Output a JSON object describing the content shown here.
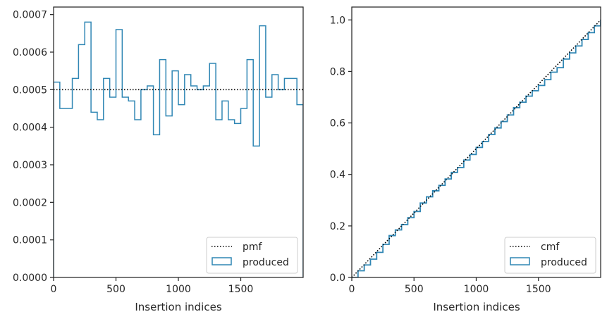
{
  "chart_data": [
    {
      "type": "histogram-step",
      "xlabel": "Insertion indices",
      "ylabel": "",
      "xlim": [
        0,
        2000
      ],
      "ylim": [
        0,
        0.00072
      ],
      "xticks": [
        0,
        500,
        1000,
        1500
      ],
      "xtick_labels": [
        "0",
        "500",
        "1000",
        "1500"
      ],
      "yticks": [
        0,
        0.0001,
        0.0002,
        0.0003,
        0.0004,
        0.0005,
        0.0006,
        0.0007
      ],
      "ytick_labels": [
        "0.0000",
        "0.0001",
        "0.0002",
        "0.0003",
        "0.0004",
        "0.0005",
        "0.0006",
        "0.0007"
      ],
      "legend_position": "lower-right",
      "bin_width": 50,
      "series": [
        {
          "name": "pmf",
          "style": "dotted",
          "color": "#000000",
          "x": [
            0,
            2000
          ],
          "y": [
            0.0005,
            0.0005
          ]
        },
        {
          "name": "produced",
          "style": "step",
          "color": "#2f86b4",
          "bin_edges": [
            0,
            50,
            100,
            150,
            200,
            250,
            300,
            350,
            400,
            450,
            500,
            550,
            600,
            650,
            700,
            750,
            800,
            850,
            900,
            950,
            1000,
            1050,
            1100,
            1150,
            1200,
            1250,
            1300,
            1350,
            1400,
            1450,
            1500,
            1550,
            1600,
            1650,
            1700,
            1750,
            1800,
            1850,
            1900,
            1950,
            2000
          ],
          "values": [
            0.00052,
            0.00045,
            0.00045,
            0.00053,
            0.00062,
            0.00068,
            0.00044,
            0.00042,
            0.00053,
            0.00048,
            0.00066,
            0.00048,
            0.00047,
            0.00042,
            0.0005,
            0.00051,
            0.00038,
            0.00058,
            0.00043,
            0.00055,
            0.00046,
            0.00054,
            0.00051,
            0.0005,
            0.00051,
            0.00057,
            0.00042,
            0.00047,
            0.00042,
            0.00041,
            0.00045,
            0.00058,
            0.00035,
            0.00067,
            0.00048,
            0.00054,
            0.0005,
            0.00053,
            0.00053,
            0.00046
          ]
        }
      ]
    },
    {
      "type": "line",
      "xlabel": "Insertion indices",
      "ylabel": "",
      "xlim": [
        0,
        2000
      ],
      "ylim": [
        0,
        1.05
      ],
      "xticks": [
        0,
        500,
        1000,
        1500
      ],
      "xtick_labels": [
        "0",
        "500",
        "1000",
        "1500"
      ],
      "yticks": [
        0,
        0.2,
        0.4,
        0.6,
        0.8,
        1.0
      ],
      "ytick_labels": [
        "0.0",
        "0.2",
        "0.4",
        "0.6",
        "0.8",
        "1.0"
      ],
      "legend_position": "lower-right",
      "series": [
        {
          "name": "cmf",
          "style": "dotted",
          "color": "#000000",
          "x": [
            0,
            2000
          ],
          "y": [
            0,
            1.0
          ]
        },
        {
          "name": "produced",
          "style": "step",
          "color": "#2f86b4",
          "x": [
            0,
            50,
            100,
            150,
            200,
            250,
            300,
            350,
            400,
            450,
            500,
            550,
            600,
            650,
            700,
            750,
            800,
            850,
            900,
            950,
            1000,
            1050,
            1100,
            1150,
            1200,
            1250,
            1300,
            1350,
            1400,
            1450,
            1500,
            1550,
            1600,
            1650,
            1700,
            1750,
            1800,
            1850,
            1900,
            1950,
            2000
          ],
          "y": [
            0,
            0.026,
            0.0485,
            0.071,
            0.0975,
            0.1285,
            0.1625,
            0.1845,
            0.2055,
            0.232,
            0.256,
            0.289,
            0.313,
            0.3365,
            0.3575,
            0.3825,
            0.408,
            0.427,
            0.456,
            0.4775,
            0.505,
            0.528,
            0.555,
            0.5805,
            0.6055,
            0.631,
            0.6595,
            0.6805,
            0.704,
            0.725,
            0.7455,
            0.768,
            0.797,
            0.8145,
            0.848,
            0.872,
            0.899,
            0.924,
            0.9505,
            0.977,
            1.0
          ]
        }
      ]
    }
  ],
  "legends": [
    {
      "items": [
        {
          "label": "pmf",
          "kind": "line"
        },
        {
          "label": "produced",
          "kind": "patch"
        }
      ]
    },
    {
      "items": [
        {
          "label": "cmf",
          "kind": "line"
        },
        {
          "label": "produced",
          "kind": "patch"
        }
      ]
    }
  ],
  "colors": {
    "series": "#2f86b4",
    "reference": "#000000",
    "axes": "#262626"
  }
}
